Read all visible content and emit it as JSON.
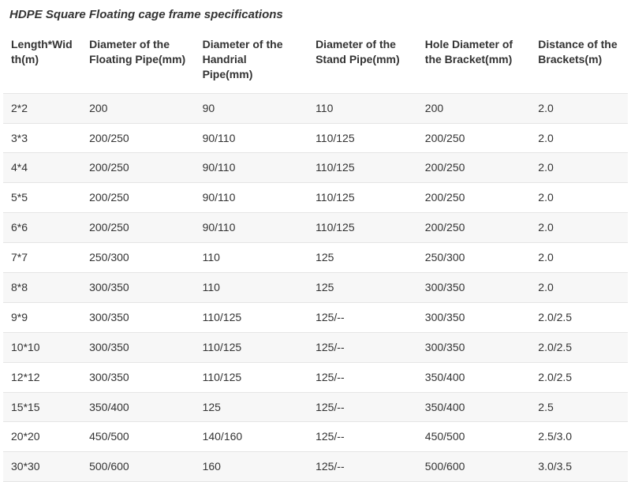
{
  "title": "HDPE Square Floating cage frame specifications",
  "table": {
    "type": "table",
    "columns": [
      {
        "label": "Length*Width(m)",
        "width_pct": 12.5
      },
      {
        "label": "Diameter of the Floating Pipe(mm)",
        "width_pct": 18.1
      },
      {
        "label": "Diameter of the Handrial Pipe(mm)",
        "width_pct": 18.1
      },
      {
        "label": "Diameter of the Stand Pipe(mm)",
        "width_pct": 17.5
      },
      {
        "label": "Hole Diameter of the Bracket(mm)",
        "width_pct": 18.1
      },
      {
        "label": "Distance of the Brackets(m)",
        "width_pct": 15.6
      }
    ],
    "rows": [
      [
        "2*2",
        "200",
        "90",
        "110",
        "200",
        "2.0"
      ],
      [
        "3*3",
        "200/250",
        "90/110",
        "110/125",
        "200/250",
        "2.0"
      ],
      [
        "4*4",
        "200/250",
        "90/110",
        "110/125",
        "200/250",
        "2.0"
      ],
      [
        "5*5",
        "200/250",
        "90/110",
        "110/125",
        "200/250",
        "2.0"
      ],
      [
        "6*6",
        "200/250",
        "90/110",
        "110/125",
        "200/250",
        "2.0"
      ],
      [
        "7*7",
        "250/300",
        "110",
        "125",
        "250/300",
        "2.0"
      ],
      [
        "8*8",
        "300/350",
        "110",
        "125",
        "300/350",
        "2.0"
      ],
      [
        "9*9",
        "300/350",
        "110/125",
        "125/--",
        "300/350",
        "2.0/2.5"
      ],
      [
        "10*10",
        "300/350",
        "110/125",
        "125/--",
        "300/350",
        "2.0/2.5"
      ],
      [
        "12*12",
        "300/350",
        "110/125",
        "125/--",
        "350/400",
        "2.0/2.5"
      ],
      [
        "15*15",
        "350/400",
        "125",
        "125/--",
        "350/400",
        "2.5"
      ],
      [
        "20*20",
        "450/500",
        "140/160",
        "125/--",
        "450/500",
        "2.5/3.0"
      ],
      [
        "30*30",
        "500/600",
        "160",
        "125/--",
        "500/600",
        "3.0/3.5"
      ]
    ],
    "header_fontsize": 14,
    "cell_fontsize": 14,
    "title_fontsize": 15,
    "colors": {
      "text": "#333333",
      "row_odd_bg": "#f7f7f7",
      "row_even_bg": "#ffffff",
      "border": "#e5e5e5",
      "page_bg": "#ffffff"
    }
  }
}
